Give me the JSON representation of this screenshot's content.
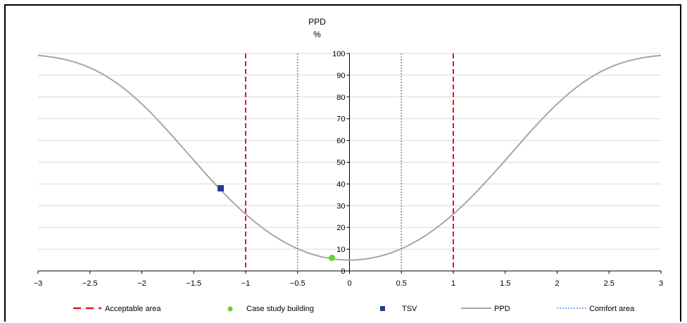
{
  "chart_data": {
    "type": "line",
    "title": "",
    "ylabel_line1": "PPD",
    "ylabel_line2": "%",
    "xlabel": "",
    "xlim": [
      -3,
      3
    ],
    "ylim": [
      0,
      100
    ],
    "grid": "horizontal",
    "legend_position": "bottom",
    "x_ticks": [
      -3,
      -2.5,
      -2,
      -1.5,
      -1,
      -0.5,
      0,
      0.5,
      1,
      1.5,
      2,
      2.5,
      3
    ],
    "x_tick_labels": [
      "−3",
      "−2.5",
      "−2",
      "−1.5",
      "−1",
      "−0.5",
      "0",
      "0.5",
      "1",
      "1.5",
      "2",
      "2.5",
      "3"
    ],
    "y_ticks": [
      0,
      10,
      20,
      30,
      40,
      50,
      60,
      70,
      80,
      90,
      100
    ],
    "y_tick_labels": [
      "0",
      "10",
      "20",
      "30",
      "40",
      "50",
      "60",
      "70",
      "80",
      "90",
      "100"
    ],
    "series": [
      {
        "name": "Acceptable area",
        "kind": "vline",
        "color": "#e8141c",
        "style": "dashed",
        "x_values": [
          -1,
          1
        ]
      },
      {
        "name": "Case study building",
        "kind": "point",
        "marker": "circle",
        "color": "#6fce2e",
        "points": [
          {
            "x": -0.17,
            "y": 6
          }
        ]
      },
      {
        "name": "TSV",
        "kind": "point",
        "marker": "square",
        "color": "#1f3f8c",
        "points": [
          {
            "x": -1.24,
            "y": 38
          }
        ]
      },
      {
        "name": "PPD",
        "kind": "curve",
        "color": "#a6a6a6",
        "style": "solid",
        "formula": "100 - 95*exp(-0.03353*x^4 - 0.2179*x^2)",
        "x_range": [
          -3,
          3
        ]
      },
      {
        "name": "Comfort area",
        "kind": "vline",
        "color": "#4a90e2",
        "style": "dotted",
        "x_values": [
          -0.5,
          0.5
        ]
      }
    ]
  }
}
